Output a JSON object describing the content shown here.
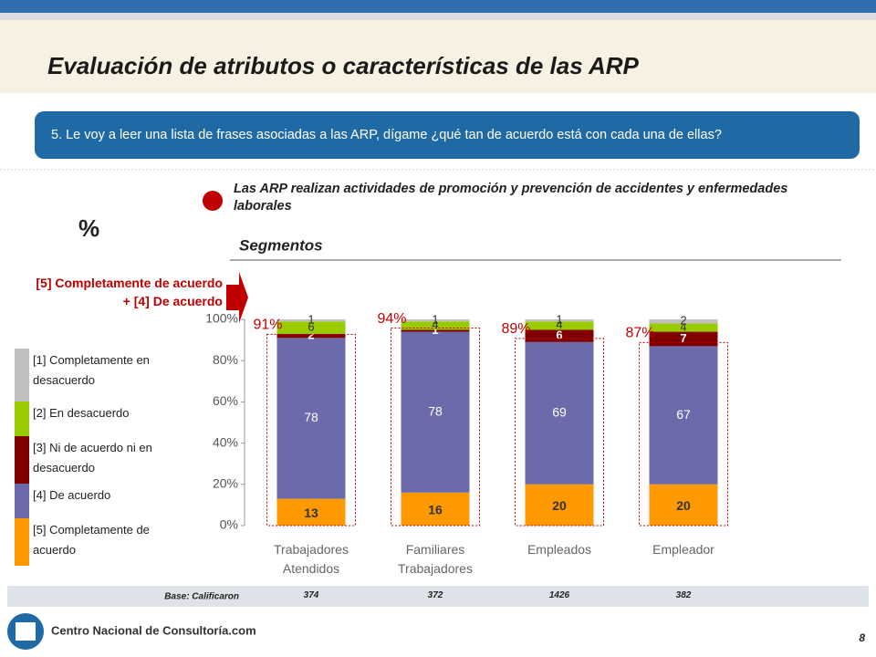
{
  "header": {
    "title": "Evaluación de atributos o características de las ARP",
    "question": "5. Le voy a leer una lista de frases asociadas a las ARP, dígame ¿qué tan de acuerdo está con cada una de ellas?",
    "statement": "Las ARP realizan actividades de promoción y prevención de accidentes y enfermedades laborales",
    "unit": "%",
    "segments_label": "Segmentos"
  },
  "chart_data": {
    "type": "stacked_bar",
    "categories": [
      "Trabajadores Atendidos",
      "Familiares Trabajadores",
      "Empleados",
      "Empleador"
    ],
    "series": [
      {
        "name": "[5] Completamente de acuerdo",
        "color": "#ff9900",
        "values": [
          13,
          16,
          20,
          20
        ]
      },
      {
        "name": "[4] De acuerdo",
        "color": "#6b6bab",
        "values": [
          78,
          78,
          69,
          67
        ]
      },
      {
        "name": "[3] Ni de acuerdo ni en desacuerdo",
        "color": "#800000",
        "values": [
          2,
          1,
          6,
          7
        ]
      },
      {
        "name": "[2] En desacuerdo",
        "color": "#99cc00",
        "values": [
          6,
          4,
          4,
          4
        ]
      },
      {
        "name": "[1] Completamente en desacuerdo",
        "color": "#bfbfbf",
        "values": [
          1,
          1,
          1,
          2
        ]
      }
    ],
    "top_box": {
      "label": "[5] Completamente de acuerdo + [4] De acuerdo",
      "values": [
        91,
        94,
        89,
        87
      ],
      "value_labels": [
        "91%",
        "94%",
        "89%",
        "87%"
      ]
    },
    "ylim": [
      0,
      100
    ],
    "yticks": [
      {
        "value": 0,
        "label": "0%"
      },
      {
        "value": 20,
        "label": "20%"
      },
      {
        "value": 40,
        "label": "40%"
      },
      {
        "value": 60,
        "label": "60%"
      },
      {
        "value": 80,
        "label": "80%"
      },
      {
        "value": 100,
        "label": "100%"
      }
    ]
  },
  "base": {
    "label": "Base: Calificaron",
    "values": [
      374,
      372,
      1426,
      382
    ]
  },
  "footer": {
    "logo": "Centro Nacional de Consultoría.com",
    "page": "8"
  }
}
